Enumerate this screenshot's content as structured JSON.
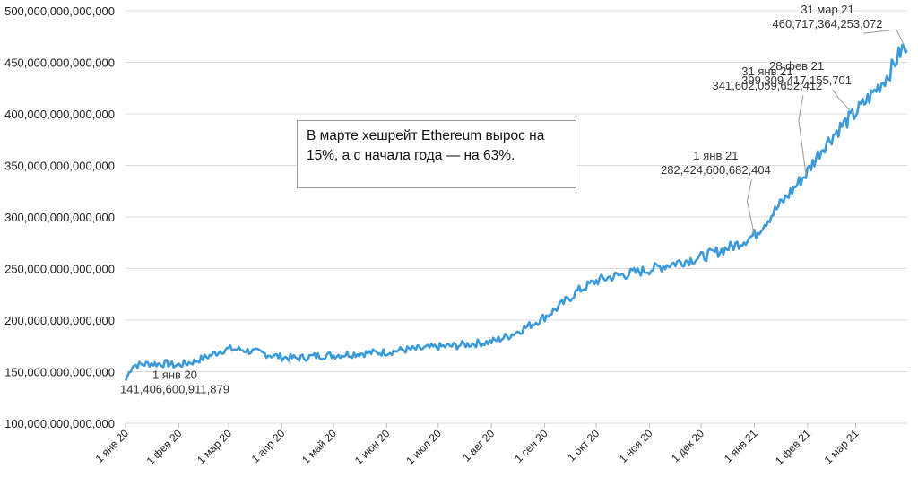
{
  "chart_data": {
    "type": "line",
    "title": "",
    "xlabel": "",
    "ylabel": "",
    "ylim": [
      100000000000000,
      500000000000000
    ],
    "y_ticks": [
      100000000000000,
      150000000000000,
      200000000000000,
      250000000000000,
      300000000000000,
      350000000000000,
      400000000000000,
      450000000000000,
      500000000000000
    ],
    "y_tick_labels": [
      "100,000,000,000,000",
      "150,000,000,000,000",
      "200,000,000,000,000",
      "250,000,000,000,000",
      "300,000,000,000,000",
      "350,000,000,000,000",
      "400,000,000,000,000",
      "450,000,000,000,000",
      "500,000,000,000,000"
    ],
    "x_range": [
      "2020-01-01",
      "2021-03-31"
    ],
    "x_ticks": [
      {
        "date": "2020-01-01",
        "label": "1 янв 20"
      },
      {
        "date": "2020-02-01",
        "label": "1 фев 20"
      },
      {
        "date": "2020-03-01",
        "label": "1 мар 20"
      },
      {
        "date": "2020-04-01",
        "label": "1 апр 20"
      },
      {
        "date": "2020-05-01",
        "label": "1 май 20"
      },
      {
        "date": "2020-06-01",
        "label": "1 июн 20"
      },
      {
        "date": "2020-07-01",
        "label": "1 июл 20"
      },
      {
        "date": "2020-08-01",
        "label": "1 авг 20"
      },
      {
        "date": "2020-09-01",
        "label": "1 сен 20"
      },
      {
        "date": "2020-10-01",
        "label": "1 окт 20"
      },
      {
        "date": "2020-11-01",
        "label": "1 ноя 20"
      },
      {
        "date": "2020-12-01",
        "label": "1 дек 20"
      },
      {
        "date": "2021-01-01",
        "label": "1 янв 21"
      },
      {
        "date": "2021-02-01",
        "label": "1 фев 21"
      },
      {
        "date": "2021-03-01",
        "label": "1 мар 21"
      }
    ],
    "series": [
      {
        "name": "Ethereum hashrate",
        "color": "#3a9ad9",
        "points": [
          [
            "2020-01-01",
            141406600911879
          ],
          [
            "2020-01-05",
            156000000000000
          ],
          [
            "2020-01-10",
            157000000000000
          ],
          [
            "2020-01-15",
            158000000000000
          ],
          [
            "2020-01-20",
            157500000000000
          ],
          [
            "2020-01-25",
            158000000000000
          ],
          [
            "2020-01-30",
            156000000000000
          ],
          [
            "2020-02-05",
            158000000000000
          ],
          [
            "2020-02-10",
            160000000000000
          ],
          [
            "2020-02-15",
            163000000000000
          ],
          [
            "2020-02-20",
            166000000000000
          ],
          [
            "2020-02-25",
            170000000000000
          ],
          [
            "2020-03-01",
            172000000000000
          ],
          [
            "2020-03-10",
            171000000000000
          ],
          [
            "2020-03-20",
            168000000000000
          ],
          [
            "2020-04-01",
            164000000000000
          ],
          [
            "2020-04-10",
            163000000000000
          ],
          [
            "2020-04-20",
            165000000000000
          ],
          [
            "2020-05-01",
            166000000000000
          ],
          [
            "2020-05-10",
            167000000000000
          ],
          [
            "2020-05-20",
            168000000000000
          ],
          [
            "2020-06-01",
            169000000000000
          ],
          [
            "2020-06-10",
            171000000000000
          ],
          [
            "2020-06-20",
            172000000000000
          ],
          [
            "2020-07-01",
            174000000000000
          ],
          [
            "2020-07-10",
            175000000000000
          ],
          [
            "2020-07-20",
            177000000000000
          ],
          [
            "2020-08-01",
            179000000000000
          ],
          [
            "2020-08-10",
            184000000000000
          ],
          [
            "2020-08-20",
            192000000000000
          ],
          [
            "2020-09-01",
            203000000000000
          ],
          [
            "2020-09-10",
            214000000000000
          ],
          [
            "2020-09-20",
            228000000000000
          ],
          [
            "2020-10-01",
            238000000000000
          ],
          [
            "2020-10-10",
            242000000000000
          ],
          [
            "2020-10-20",
            245000000000000
          ],
          [
            "2020-11-01",
            249000000000000
          ],
          [
            "2020-11-10",
            253000000000000
          ],
          [
            "2020-11-20",
            257000000000000
          ],
          [
            "2020-12-01",
            261000000000000
          ],
          [
            "2020-12-10",
            266000000000000
          ],
          [
            "2020-12-20",
            272000000000000
          ],
          [
            "2021-01-01",
            282424600682404
          ],
          [
            "2021-01-10",
            300000000000000
          ],
          [
            "2021-01-20",
            320000000000000
          ],
          [
            "2021-01-31",
            341602059652412
          ],
          [
            "2021-02-10",
            368000000000000
          ],
          [
            "2021-02-20",
            387000000000000
          ],
          [
            "2021-02-28",
            399309417155701
          ],
          [
            "2021-03-10",
            418000000000000
          ],
          [
            "2021-03-20",
            438000000000000
          ],
          [
            "2021-03-28",
            463000000000000
          ],
          [
            "2021-03-31",
            460717364253072
          ]
        ]
      }
    ],
    "annotations": [
      {
        "name": "ann-jan20",
        "date": "2020-01-01",
        "value": 141406600911879,
        "line1": "1 янв 20",
        "line2": "141,406,600,911,879"
      },
      {
        "name": "ann-jan21",
        "date": "2021-01-01",
        "value": 282424600682404,
        "line1": "1 янв 21",
        "line2": "282,424,600,682,404"
      },
      {
        "name": "ann-jan31",
        "date": "2021-01-31",
        "value": 341602059652412,
        "line1": "31 янв 21",
        "line2": "341,602,059,652,412"
      },
      {
        "name": "ann-feb28",
        "date": "2021-02-28",
        "value": 399309417155701,
        "line1": "28 фев 21",
        "line2": "399,309,417,155,701"
      },
      {
        "name": "ann-mar31",
        "date": "2021-03-31",
        "value": 460717364253072,
        "line1": "31 мар 21",
        "line2": "460,717,364,253,072"
      }
    ],
    "callout": "В марте хешрейт Ethereum вырос на 15%, а с начала года — на 63%.",
    "grid": true,
    "legend": "none"
  }
}
